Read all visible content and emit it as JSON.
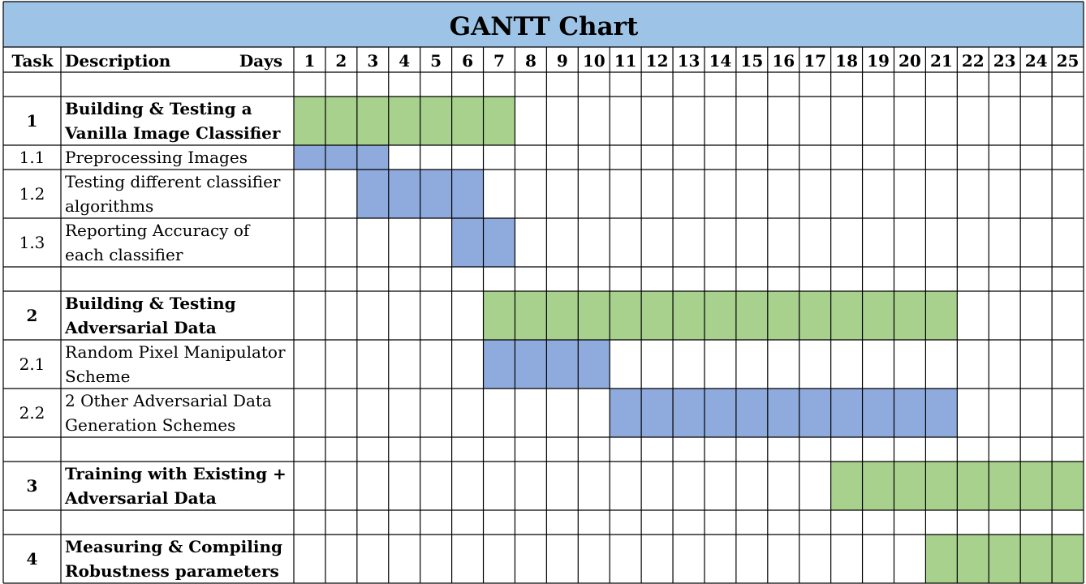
{
  "chart_data": {
    "type": "gantt",
    "title": "GANTT Chart",
    "headers": {
      "task": "Task",
      "description": "Description",
      "days": "Days"
    },
    "days": [
      1,
      2,
      3,
      4,
      5,
      6,
      7,
      8,
      9,
      10,
      11,
      12,
      13,
      14,
      15,
      16,
      17,
      18,
      19,
      20,
      21,
      22,
      23,
      24,
      25
    ],
    "rows": [
      {
        "kind": "spacer"
      },
      {
        "kind": "task",
        "level": "main",
        "id": "1",
        "lines": [
          "Building & Testing a",
          "Vanilla Image Classifier"
        ],
        "start": 1,
        "end": 7
      },
      {
        "kind": "task",
        "level": "sub",
        "id": "1.1",
        "lines": [
          "Preprocessing Images"
        ],
        "start": 1,
        "end": 3,
        "short": true
      },
      {
        "kind": "task",
        "level": "sub",
        "id": "1.2",
        "lines": [
          "Testing different classifier",
          "algorithms"
        ],
        "start": 3,
        "end": 6
      },
      {
        "kind": "task",
        "level": "sub",
        "id": "1.3",
        "lines": [
          "Reporting Accuracy of",
          "each classifier"
        ],
        "start": 6,
        "end": 7
      },
      {
        "kind": "spacer"
      },
      {
        "kind": "task",
        "level": "main",
        "id": "2",
        "lines": [
          "Building & Testing",
          "Adversarial Data"
        ],
        "start": 7,
        "end": 21
      },
      {
        "kind": "task",
        "level": "sub",
        "id": "2.1",
        "lines": [
          "Random Pixel Manipulator",
          "Scheme"
        ],
        "start": 7,
        "end": 10
      },
      {
        "kind": "task",
        "level": "sub",
        "id": "2.2",
        "lines": [
          "2 Other Adversarial Data",
          "Generation Schemes"
        ],
        "start": 11,
        "end": 21
      },
      {
        "kind": "spacer"
      },
      {
        "kind": "task",
        "level": "main",
        "id": "3",
        "lines": [
          "Training with Existing +",
          "Adversarial Data"
        ],
        "start": 18,
        "end": 25
      },
      {
        "kind": "spacer"
      },
      {
        "kind": "task",
        "level": "main",
        "id": "4",
        "lines": [
          "Measuring & Compiling",
          "Robustness parameters"
        ],
        "start": 21,
        "end": 25
      }
    ],
    "colors": {
      "title_bg": "#9dc3e6",
      "main_bar": "#a9d18e",
      "sub_bar": "#8faadc",
      "grid": "#000000"
    }
  }
}
